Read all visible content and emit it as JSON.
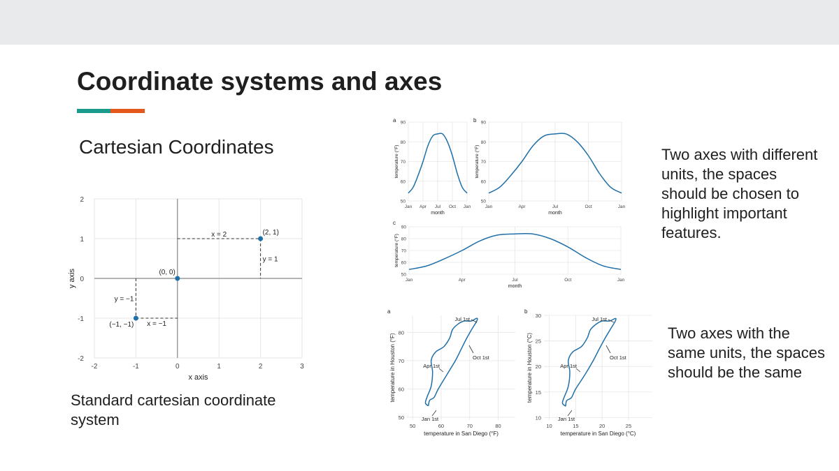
{
  "slide": {
    "title": "Coordinate systems and axes",
    "subtitle": "Cartesian Coordinates",
    "caption": "Standard cartesian coordinate system",
    "desc_top": "Two axes with different units, the spaces should be chosen to highlight important features.",
    "desc_bottom": "Two axes with the same units, the spaces should be the same",
    "accent_colors": [
      "#1a9a8a",
      "#e4581c"
    ]
  },
  "chart_data": [
    {
      "id": "cartesian",
      "type": "scatter",
      "xlabel": "x axis",
      "ylabel": "y axis",
      "xlim": [
        -2,
        3
      ],
      "ylim": [
        -2,
        2
      ],
      "xticks": [
        "-2",
        "-1",
        "0",
        "1",
        "2",
        "3"
      ],
      "yticks": [
        "-2",
        "-1",
        "0",
        "1",
        "2"
      ],
      "points": [
        {
          "x": 0,
          "y": 0,
          "label": "(0, 0)"
        },
        {
          "x": 2,
          "y": 1,
          "label": "(2, 1)"
        },
        {
          "x": -1,
          "y": -1,
          "label": "(−1, −1)"
        }
      ],
      "annotations": [
        "x = 2",
        "y = 1",
        "y = −1",
        "x = −1"
      ]
    },
    {
      "id": "a",
      "type": "line",
      "panel_label": "a",
      "xlabel": "month",
      "ylabel": "temperature (°F)",
      "xticks": [
        "Jan",
        "Apr",
        "Jul",
        "Oct",
        "Jan"
      ],
      "yticks": [
        "50",
        "60",
        "70",
        "80",
        "90"
      ],
      "ylim": [
        50,
        90
      ],
      "months": [
        0,
        1,
        2,
        3,
        4,
        5,
        6,
        7,
        8,
        9,
        10,
        11,
        12
      ],
      "values": [
        54,
        57,
        63,
        70,
        78,
        83,
        84,
        84,
        80,
        73,
        64,
        57,
        54
      ]
    },
    {
      "id": "b",
      "type": "line",
      "panel_label": "b",
      "xlabel": "month",
      "ylabel": "temperature (°F)",
      "xticks": [
        "Jan",
        "Apr",
        "Jul",
        "Oct",
        "Jan"
      ],
      "yticks": [
        "50",
        "60",
        "70",
        "80",
        "90"
      ],
      "ylim": [
        50,
        90
      ],
      "months": [
        0,
        1,
        2,
        3,
        4,
        5,
        6,
        7,
        8,
        9,
        10,
        11,
        12
      ],
      "values": [
        54,
        57,
        63,
        70,
        78,
        83,
        84,
        84,
        80,
        73,
        64,
        57,
        54
      ]
    },
    {
      "id": "c",
      "type": "line",
      "panel_label": "c",
      "xlabel": "month",
      "ylabel": "temperature (°F)",
      "xticks": [
        "Jan",
        "Apr",
        "Jul",
        "Oct",
        "Jan"
      ],
      "yticks": [
        "50",
        "60",
        "70",
        "80",
        "90"
      ],
      "ylim": [
        50,
        90
      ],
      "months": [
        0,
        1,
        2,
        3,
        4,
        5,
        6,
        7,
        8,
        9,
        10,
        11,
        12
      ],
      "values": [
        54,
        57,
        63,
        70,
        78,
        83,
        84,
        84,
        80,
        73,
        64,
        57,
        54
      ]
    },
    {
      "id": "hf",
      "type": "line",
      "panel_label": "a",
      "xlabel": "temperature in San Diego (°F)",
      "ylabel": "temperature in Houston (°F)",
      "xlim": [
        48,
        86
      ],
      "ylim": [
        49,
        86
      ],
      "xticks": [
        "50",
        "60",
        "70",
        "80"
      ],
      "yticks": [
        "50",
        "60",
        "70",
        "80"
      ],
      "points": [
        [
          55.5,
          54
        ],
        [
          54.5,
          55
        ],
        [
          55,
          57
        ],
        [
          56.5,
          61
        ],
        [
          57,
          66
        ],
        [
          56.5,
          70
        ],
        [
          58,
          73
        ],
        [
          61,
          75
        ],
        [
          63,
          78
        ],
        [
          64,
          81
        ],
        [
          66,
          83
        ],
        [
          68,
          84
        ],
        [
          70.5,
          84
        ],
        [
          72.5,
          85
        ],
        [
          72.5,
          84
        ],
        [
          71,
          81.5
        ],
        [
          69,
          78
        ],
        [
          67,
          74
        ],
        [
          65,
          70
        ],
        [
          62,
          65
        ],
        [
          59,
          60
        ],
        [
          57.5,
          57
        ],
        [
          56,
          56
        ],
        [
          55.5,
          54
        ]
      ],
      "labels": [
        "Jul 1st",
        "Oct 1st",
        "Apr 1st",
        "Jan 1st"
      ]
    },
    {
      "id": "hc",
      "type": "line",
      "panel_label": "b",
      "xlabel": "temperature in San Diego (°C)",
      "ylabel": "temperature in Houston (°C)",
      "xlim": [
        9,
        29.5
      ],
      "ylim": [
        9.5,
        30
      ],
      "xticks": [
        "10",
        "15",
        "20",
        "25"
      ],
      "yticks": [
        "10",
        "15",
        "20",
        "25",
        "30"
      ],
      "points": [
        [
          13.1,
          12.2
        ],
        [
          12.5,
          12.8
        ],
        [
          12.8,
          13.9
        ],
        [
          13.6,
          16.1
        ],
        [
          13.9,
          18.9
        ],
        [
          13.6,
          21.1
        ],
        [
          14.4,
          22.8
        ],
        [
          16.1,
          23.9
        ],
        [
          17.2,
          25.6
        ],
        [
          17.8,
          27.2
        ],
        [
          18.9,
          28.3
        ],
        [
          20,
          28.9
        ],
        [
          21.4,
          28.9
        ],
        [
          22.5,
          29.4
        ],
        [
          22.5,
          28.9
        ],
        [
          21.7,
          27.5
        ],
        [
          20.6,
          25.6
        ],
        [
          19.4,
          23.3
        ],
        [
          18.3,
          21.1
        ],
        [
          16.7,
          18.3
        ],
        [
          15,
          15.6
        ],
        [
          14.2,
          13.9
        ],
        [
          13.3,
          13.3
        ],
        [
          13.1,
          12.2
        ]
      ],
      "labels": [
        "Jul 1st",
        "Oct 1st",
        "Apr 1st",
        "Jan 1st"
      ]
    }
  ]
}
